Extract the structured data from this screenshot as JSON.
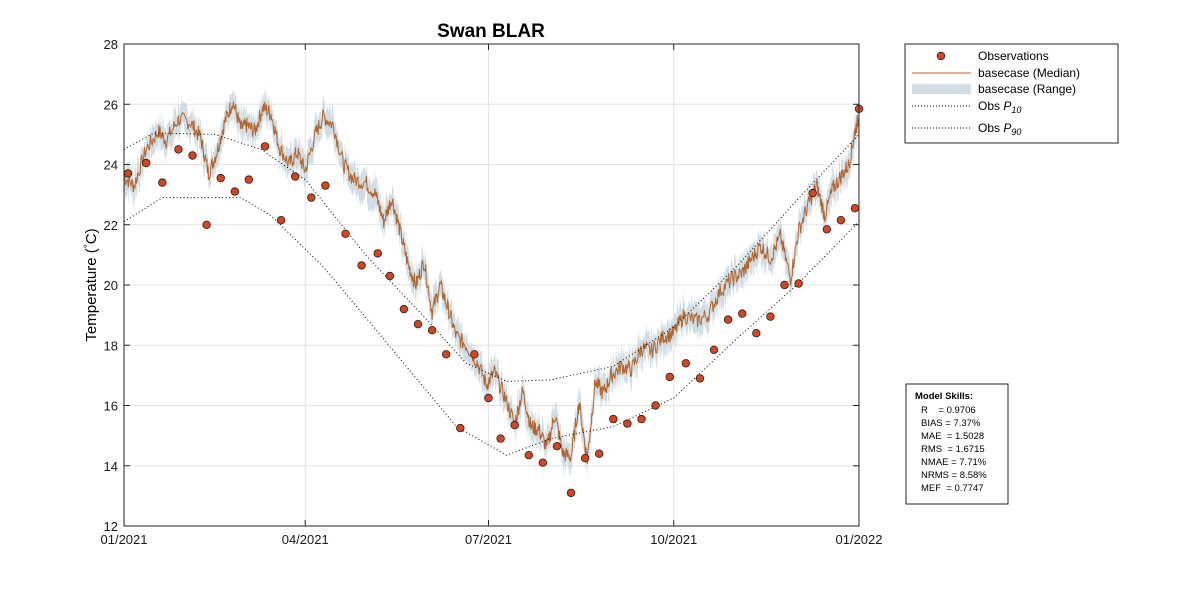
{
  "chart_data": {
    "type": "line",
    "title": "Swan BLAR",
    "ylabel": "Temperature (°C)",
    "ylabel_pre": "Temperature (",
    "ylabel_deg": "°",
    "ylabel_post": "C)",
    "xlabel": "",
    "ylim": [
      12,
      28
    ],
    "xlim": [
      "2021-01-01",
      "2022-01-01"
    ],
    "yticks": [
      12,
      14,
      16,
      18,
      20,
      22,
      24,
      26,
      28
    ],
    "xticks": [
      {
        "date": "2021-01-01",
        "label": "01/2021"
      },
      {
        "date": "2021-04-01",
        "label": "04/2021"
      },
      {
        "date": "2021-07-01",
        "label": "07/2021"
      },
      {
        "date": "2021-10-01",
        "label": "10/2021"
      },
      {
        "date": "2022-01-01",
        "label": "01/2022"
      }
    ],
    "grid": true,
    "legend_position": "outside-top-right",
    "series": [
      {
        "name": "Observations",
        "kind": "scatter",
        "color": "#d9441c",
        "points": [
          [
            "2021-01-03",
            23.7
          ],
          [
            "2021-01-12",
            24.05
          ],
          [
            "2021-01-20",
            23.4
          ],
          [
            "2021-01-28",
            24.5
          ],
          [
            "2021-02-04",
            24.3
          ],
          [
            "2021-02-11",
            22.0
          ],
          [
            "2021-02-18",
            23.55
          ],
          [
            "2021-02-25",
            23.1
          ],
          [
            "2021-03-04",
            23.5
          ],
          [
            "2021-03-12",
            24.6
          ],
          [
            "2021-03-20",
            22.15
          ],
          [
            "2021-03-27",
            23.6
          ],
          [
            "2021-04-04",
            22.9
          ],
          [
            "2021-04-11",
            23.3
          ],
          [
            "2021-04-21",
            21.7
          ],
          [
            "2021-04-29",
            20.65
          ],
          [
            "2021-05-07",
            21.05
          ],
          [
            "2021-05-13",
            20.3
          ],
          [
            "2021-05-20",
            19.2
          ],
          [
            "2021-05-27",
            18.7
          ],
          [
            "2021-06-03",
            18.5
          ],
          [
            "2021-06-10",
            17.7
          ],
          [
            "2021-06-17",
            15.25
          ],
          [
            "2021-06-24",
            17.7
          ],
          [
            "2021-07-01",
            16.25
          ],
          [
            "2021-07-07",
            14.9
          ],
          [
            "2021-07-14",
            15.35
          ],
          [
            "2021-07-21",
            14.35
          ],
          [
            "2021-07-28",
            14.1
          ],
          [
            "2021-08-04",
            14.65
          ],
          [
            "2021-08-11",
            13.1
          ],
          [
            "2021-08-18",
            14.25
          ],
          [
            "2021-08-25",
            14.4
          ],
          [
            "2021-09-01",
            15.55
          ],
          [
            "2021-09-08",
            15.4
          ],
          [
            "2021-09-15",
            15.55
          ],
          [
            "2021-09-22",
            16.0
          ],
          [
            "2021-09-29",
            16.95
          ],
          [
            "2021-10-07",
            17.4
          ],
          [
            "2021-10-14",
            16.9
          ],
          [
            "2021-10-21",
            17.85
          ],
          [
            "2021-10-28",
            18.85
          ],
          [
            "2021-11-04",
            19.05
          ],
          [
            "2021-11-11",
            18.4
          ],
          [
            "2021-11-18",
            18.95
          ],
          [
            "2021-11-25",
            20.0
          ],
          [
            "2021-12-02",
            20.05
          ],
          [
            "2021-12-09",
            23.05
          ],
          [
            "2021-12-16",
            21.85
          ],
          [
            "2021-12-23",
            22.15
          ],
          [
            "2021-12-30",
            22.55
          ],
          [
            "2022-01-01",
            25.85
          ]
        ]
      },
      {
        "name": "basecase (Median)",
        "kind": "line",
        "color": "#b5652c",
        "points": [
          [
            "2021-01-01",
            23.6
          ],
          [
            "2021-01-06",
            23.3
          ],
          [
            "2021-01-12",
            24.5
          ],
          [
            "2021-01-18",
            25.1
          ],
          [
            "2021-01-22",
            24.8
          ],
          [
            "2021-01-28",
            25.5
          ],
          [
            "2021-02-03",
            25.4
          ],
          [
            "2021-02-08",
            24.9
          ],
          [
            "2021-02-12",
            23.7
          ],
          [
            "2021-02-16",
            24.4
          ],
          [
            "2021-02-20",
            25.4
          ],
          [
            "2021-02-24",
            26.1
          ],
          [
            "2021-02-28",
            25.2
          ],
          [
            "2021-03-03",
            25.3
          ],
          [
            "2021-03-07",
            25.1
          ],
          [
            "2021-03-11",
            25.9
          ],
          [
            "2021-03-15",
            25.7
          ],
          [
            "2021-03-19",
            24.6
          ],
          [
            "2021-03-24",
            24.0
          ],
          [
            "2021-03-28",
            24.4
          ],
          [
            "2021-04-01",
            23.8
          ],
          [
            "2021-04-06",
            25.0
          ],
          [
            "2021-04-10",
            25.6
          ],
          [
            "2021-04-15",
            25.3
          ],
          [
            "2021-04-20",
            24.0
          ],
          [
            "2021-04-25",
            23.5
          ],
          [
            "2021-05-01",
            23.4
          ],
          [
            "2021-05-06",
            23.0
          ],
          [
            "2021-05-10",
            22.1
          ],
          [
            "2021-05-14",
            22.9
          ],
          [
            "2021-05-18",
            21.8
          ],
          [
            "2021-05-22",
            20.7
          ],
          [
            "2021-05-26",
            20.0
          ],
          [
            "2021-05-30",
            20.8
          ],
          [
            "2021-06-03",
            19.1
          ],
          [
            "2021-06-07",
            20.0
          ],
          [
            "2021-06-11",
            19.2
          ],
          [
            "2021-06-15",
            18.3
          ],
          [
            "2021-06-20",
            18.0
          ],
          [
            "2021-06-25",
            17.5
          ],
          [
            "2021-06-30",
            16.7
          ],
          [
            "2021-07-04",
            17.1
          ],
          [
            "2021-07-09",
            16.3
          ],
          [
            "2021-07-14",
            15.4
          ],
          [
            "2021-07-18",
            16.5
          ],
          [
            "2021-07-22",
            15.3
          ],
          [
            "2021-07-26",
            15.2
          ],
          [
            "2021-07-30",
            14.6
          ],
          [
            "2021-08-03",
            15.7
          ],
          [
            "2021-08-07",
            14.4
          ],
          [
            "2021-08-11",
            14.3
          ],
          [
            "2021-08-15",
            16.1
          ],
          [
            "2021-08-19",
            14.2
          ],
          [
            "2021-08-23",
            16.8
          ],
          [
            "2021-08-27",
            16.4
          ],
          [
            "2021-08-31",
            17.0
          ],
          [
            "2021-09-05",
            17.3
          ],
          [
            "2021-09-10",
            17.2
          ],
          [
            "2021-09-15",
            17.9
          ],
          [
            "2021-09-20",
            17.8
          ],
          [
            "2021-09-26",
            18.3
          ],
          [
            "2021-10-01",
            18.4
          ],
          [
            "2021-10-06",
            19.0
          ],
          [
            "2021-10-12",
            18.8
          ],
          [
            "2021-10-18",
            19.0
          ],
          [
            "2021-10-24",
            19.8
          ],
          [
            "2021-10-30",
            20.2
          ],
          [
            "2021-11-04",
            20.4
          ],
          [
            "2021-11-08",
            20.8
          ],
          [
            "2021-11-13",
            21.3
          ],
          [
            "2021-11-18",
            20.9
          ],
          [
            "2021-11-23",
            21.6
          ],
          [
            "2021-11-28",
            20.2
          ],
          [
            "2021-12-02",
            21.8
          ],
          [
            "2021-12-07",
            22.7
          ],
          [
            "2021-12-11",
            23.3
          ],
          [
            "2021-12-15",
            22.3
          ],
          [
            "2021-12-19",
            23.2
          ],
          [
            "2021-12-23",
            23.6
          ],
          [
            "2021-12-27",
            24.0
          ],
          [
            "2021-12-30",
            25.1
          ],
          [
            "2022-01-01",
            25.6
          ]
        ]
      },
      {
        "name": "basecase (Range)",
        "kind": "band",
        "color": "#c8d7df",
        "spread": 0.45
      },
      {
        "name": "Obs P10",
        "kind": "dotted",
        "color": "#000000",
        "points": [
          [
            "2021-01-01",
            24.5
          ],
          [
            "2021-01-16",
            25.05
          ],
          [
            "2021-02-15",
            25.0
          ],
          [
            "2021-03-10",
            24.5
          ],
          [
            "2021-04-01",
            23.5
          ],
          [
            "2021-05-01",
            21.0
          ],
          [
            "2021-06-01",
            18.8
          ],
          [
            "2021-06-20",
            17.4
          ],
          [
            "2021-07-10",
            16.8
          ],
          [
            "2021-08-01",
            16.85
          ],
          [
            "2021-09-01",
            17.3
          ],
          [
            "2021-10-01",
            18.6
          ],
          [
            "2021-11-01",
            20.6
          ],
          [
            "2021-12-01",
            22.8
          ],
          [
            "2022-01-01",
            25.0
          ]
        ]
      },
      {
        "name": "Obs P90",
        "kind": "dotted",
        "color": "#000000",
        "points": [
          [
            "2021-01-01",
            22.1
          ],
          [
            "2021-01-20",
            22.9
          ],
          [
            "2021-02-28",
            22.9
          ],
          [
            "2021-03-15",
            22.3
          ],
          [
            "2021-04-10",
            20.6
          ],
          [
            "2021-05-10",
            18.2
          ],
          [
            "2021-06-15",
            15.3
          ],
          [
            "2021-07-10",
            14.35
          ],
          [
            "2021-08-01",
            14.9
          ],
          [
            "2021-09-01",
            15.3
          ],
          [
            "2021-10-01",
            16.25
          ],
          [
            "2021-11-01",
            18.2
          ],
          [
            "2021-12-01",
            20.0
          ],
          [
            "2022-01-01",
            22.1
          ]
        ]
      }
    ]
  },
  "legend": {
    "items": [
      {
        "label": "Observations"
      },
      {
        "label": "basecase (Median)"
      },
      {
        "label": "basecase (Range)"
      },
      {
        "label_pre": "Obs ",
        "label_p": "P",
        "label_sub": "10"
      },
      {
        "label_pre": "Obs ",
        "label_p": "P",
        "label_sub": "90"
      }
    ]
  },
  "model_skills": {
    "title": "Model Skills:",
    "lines": [
      "R    = 0.9706",
      "BIAS = 7.37%",
      "MAE  = 1.5028",
      "RMS  = 1.6715",
      "NMAE = 7.71%",
      "NRMS = 8.58%",
      "MEF  = 0.7747"
    ]
  }
}
